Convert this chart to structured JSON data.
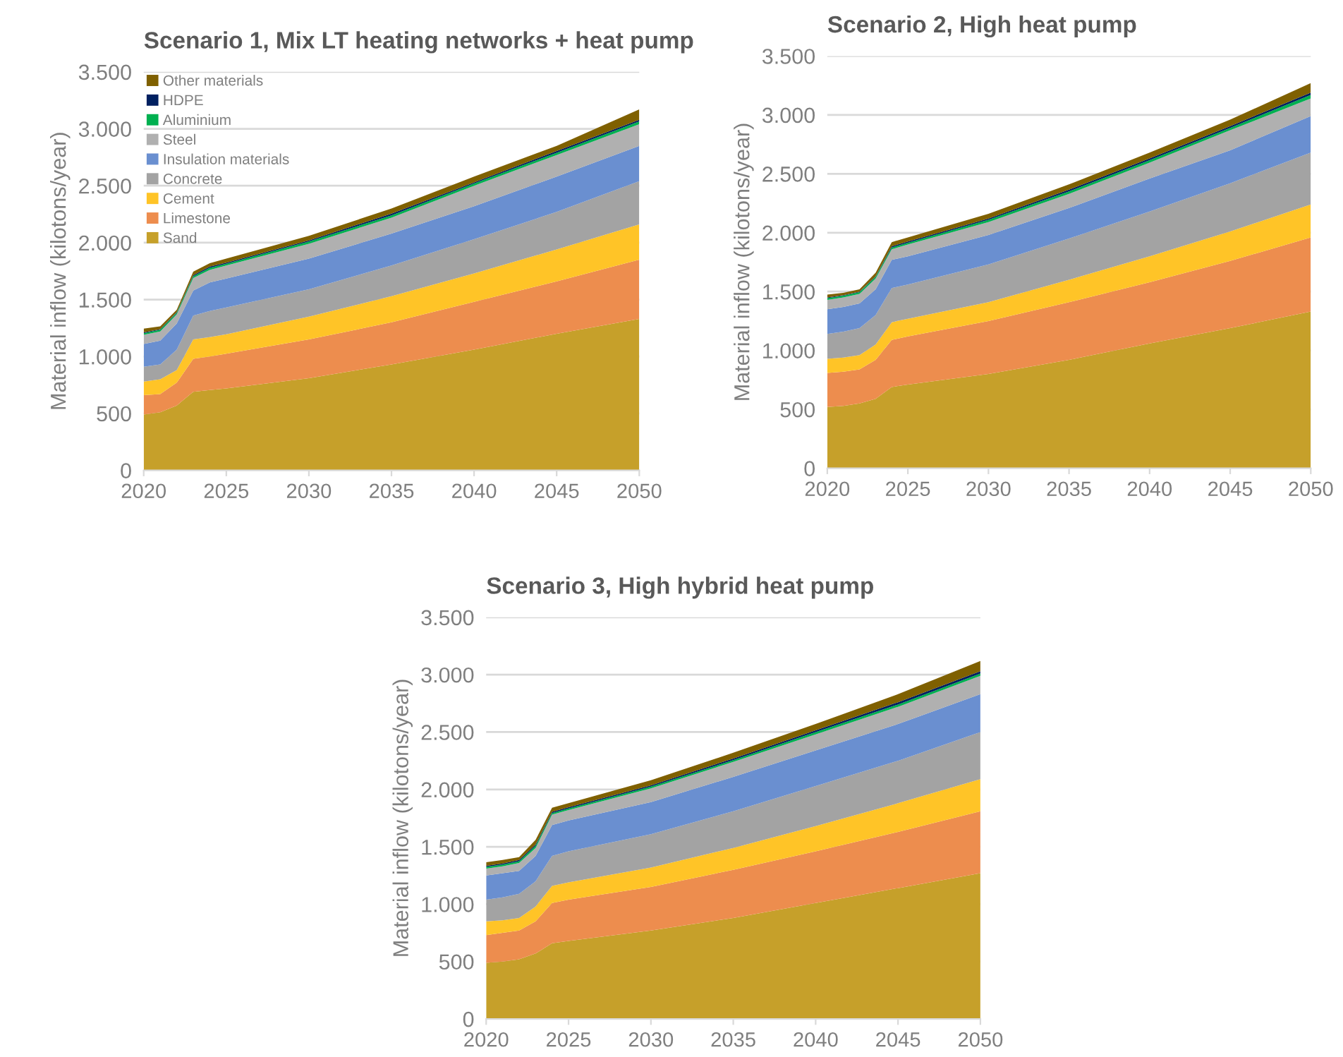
{
  "chart_data": [
    {
      "type": "area",
      "stacked": true,
      "title": "Scenario 1, Mix LT heating networks + heat pump",
      "ylabel": "Material inflow (kilotons/year)",
      "legend": "top left",
      "grid": "y",
      "x": [
        2020,
        2021,
        2022,
        2023,
        2024,
        2025,
        2030,
        2035,
        2040,
        2045,
        2050
      ],
      "xlim": [
        2020,
        2050
      ],
      "xticks": [
        2020,
        2025,
        2030,
        2035,
        2040,
        2045,
        2050
      ],
      "ylim": [
        0,
        3500
      ],
      "yticks": [
        0,
        {
          "value": 500,
          "label": "500"
        },
        {
          "value": 1000,
          "label": "1.000"
        },
        {
          "value": 1500,
          "label": "1.500"
        },
        {
          "value": 2000,
          "label": "2.000"
        },
        {
          "value": 2500,
          "label": "2.500"
        },
        {
          "value": 3000,
          "label": "3.000"
        },
        {
          "value": 3500,
          "label": "3.500"
        }
      ],
      "series": [
        {
          "name": "Sand",
          "color": "#c6a02a",
          "values": [
            490,
            510,
            570,
            690,
            705,
            720,
            810,
            930,
            1060,
            1200,
            1330
          ]
        },
        {
          "name": "Limestone",
          "color": "#ed8d4e",
          "values": [
            170,
            160,
            200,
            290,
            295,
            305,
            340,
            370,
            420,
            460,
            520
          ]
        },
        {
          "name": "Cement",
          "color": "#ffc427",
          "values": [
            120,
            130,
            110,
            170,
            170,
            170,
            200,
            230,
            250,
            280,
            310
          ]
        },
        {
          "name": "Concrete",
          "color": "#a3a3a3",
          "values": [
            130,
            130,
            180,
            210,
            230,
            235,
            240,
            270,
            300,
            330,
            380
          ]
        },
        {
          "name": "Insulation materials",
          "color": "#6a8fd0",
          "values": [
            200,
            210,
            230,
            220,
            250,
            255,
            270,
            280,
            290,
            310,
            310
          ]
        },
        {
          "name": "Steel",
          "color": "#b0b0b0",
          "values": [
            80,
            80,
            80,
            110,
            110,
            115,
            130,
            140,
            180,
            190,
            190
          ]
        },
        {
          "name": "Aluminium",
          "color": "#00b050",
          "values": [
            15,
            15,
            15,
            15,
            20,
            15,
            20,
            20,
            20,
            20,
            25
          ]
        },
        {
          "name": "HDPE",
          "color": "#002060",
          "values": [
            7,
            5,
            5,
            10,
            10,
            10,
            10,
            15,
            10,
            15,
            15
          ]
        },
        {
          "name": "Other materials",
          "color": "#7f6000",
          "values": [
            33,
            25,
            20,
            30,
            30,
            35,
            40,
            45,
            50,
            45,
            90
          ]
        }
      ]
    },
    {
      "type": "area",
      "stacked": true,
      "title": "Scenario 2, High heat pump",
      "ylabel": "Material inflow (kilotons/year)",
      "grid": "y",
      "x": [
        2020,
        2021,
        2022,
        2023,
        2024,
        2025,
        2030,
        2035,
        2040,
        2045,
        2050
      ],
      "xlim": [
        2020,
        2050
      ],
      "xticks": [
        2020,
        2025,
        2030,
        2035,
        2040,
        2045,
        2050
      ],
      "ylim": [
        0,
        3500
      ],
      "yticks": [
        0,
        {
          "value": 500,
          "label": "500"
        },
        {
          "value": 1000,
          "label": "1.000"
        },
        {
          "value": 1500,
          "label": "1.500"
        },
        {
          "value": 2000,
          "label": "2.000"
        },
        {
          "value": 2500,
          "label": "2.500"
        },
        {
          "value": 3000,
          "label": "3.000"
        },
        {
          "value": 3500,
          "label": "3.500"
        }
      ],
      "series": [
        {
          "color": "#c6a02a",
          "values": [
            520,
            530,
            550,
            590,
            690,
            710,
            800,
            920,
            1060,
            1190,
            1330
          ]
        },
        {
          "color": "#ed8d4e",
          "values": [
            290,
            290,
            290,
            330,
            400,
            410,
            450,
            490,
            520,
            570,
            630
          ]
        },
        {
          "color": "#ffc427",
          "values": [
            120,
            120,
            120,
            130,
            150,
            150,
            160,
            190,
            220,
            250,
            280
          ]
        },
        {
          "color": "#a3a3a3",
          "values": [
            210,
            220,
            230,
            250,
            290,
            290,
            320,
            350,
            380,
            410,
            440
          ]
        },
        {
          "color": "#6a8fd0",
          "values": [
            210,
            210,
            210,
            220,
            240,
            240,
            250,
            260,
            280,
            280,
            310
          ]
        },
        {
          "color": "#b0b0b0",
          "values": [
            80,
            80,
            80,
            90,
            90,
            100,
            110,
            120,
            135,
            170,
            150
          ]
        },
        {
          "color": "#00b050",
          "values": [
            15,
            15,
            15,
            15,
            15,
            15,
            20,
            20,
            20,
            20,
            30
          ]
        },
        {
          "color": "#002060",
          "values": [
            5,
            5,
            5,
            5,
            10,
            10,
            10,
            15,
            15,
            15,
            20
          ]
        },
        {
          "color": "#7f6000",
          "values": [
            25,
            20,
            20,
            30,
            35,
            35,
            40,
            45,
            50,
            55,
            80
          ]
        }
      ]
    },
    {
      "type": "area",
      "stacked": true,
      "title": "Scenario 3, High hybrid heat pump",
      "ylabel": "Material inflow (kilotons/year)",
      "grid": "y",
      "x": [
        2020,
        2021,
        2022,
        2023,
        2024,
        2025,
        2030,
        2035,
        2040,
        2045,
        2050
      ],
      "xlim": [
        2020,
        2050
      ],
      "xticks": [
        2020,
        2025,
        2030,
        2035,
        2040,
        2045,
        2050
      ],
      "ylim": [
        0,
        3500
      ],
      "yticks": [
        0,
        {
          "value": 500,
          "label": "500"
        },
        {
          "value": 1000,
          "label": "1.000"
        },
        {
          "value": 1500,
          "label": "1.500"
        },
        {
          "value": 2000,
          "label": "2.000"
        },
        {
          "value": 2500,
          "label": "2.500"
        },
        {
          "value": 3000,
          "label": "3.000"
        },
        {
          "value": 3500,
          "label": "3.500"
        }
      ],
      "series": [
        {
          "color": "#c6a02a",
          "values": [
            490,
            500,
            520,
            570,
            660,
            680,
            770,
            880,
            1010,
            1140,
            1270
          ]
        },
        {
          "color": "#ed8d4e",
          "values": [
            240,
            250,
            250,
            280,
            350,
            360,
            380,
            420,
            450,
            490,
            540
          ]
        },
        {
          "color": "#ffc427",
          "values": [
            120,
            110,
            110,
            130,
            150,
            150,
            170,
            190,
            220,
            250,
            280
          ]
        },
        {
          "color": "#a3a3a3",
          "values": [
            190,
            200,
            210,
            220,
            260,
            270,
            290,
            320,
            350,
            370,
            410
          ]
        },
        {
          "color": "#6a8fd0",
          "values": [
            210,
            210,
            200,
            220,
            270,
            270,
            280,
            300,
            310,
            320,
            330
          ]
        },
        {
          "color": "#b0b0b0",
          "values": [
            60,
            60,
            70,
            70,
            90,
            90,
            120,
            130,
            140,
            150,
            160
          ]
        },
        {
          "color": "#00b050",
          "values": [
            15,
            15,
            15,
            20,
            15,
            15,
            15,
            15,
            20,
            20,
            20
          ]
        },
        {
          "color": "#002060",
          "values": [
            10,
            10,
            10,
            10,
            10,
            10,
            10,
            15,
            15,
            20,
            20
          ]
        },
        {
          "color": "#7f6000",
          "values": [
            30,
            30,
            25,
            40,
            35,
            35,
            45,
            50,
            55,
            70,
            90
          ]
        }
      ]
    }
  ]
}
